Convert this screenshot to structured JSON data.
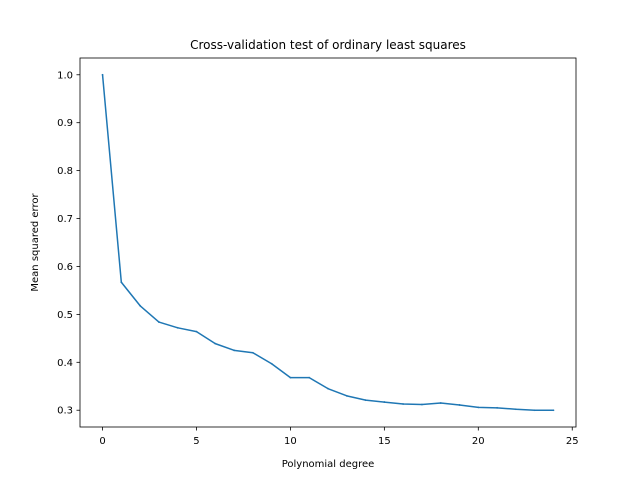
{
  "chart_data": {
    "type": "line",
    "title": "Cross-validation test of ordinary least squares",
    "xlabel": "Polynomial degree",
    "ylabel": "Mean squared error",
    "xlim": [
      -1.2,
      25.2
    ],
    "ylim": [
      0.265,
      1.035
    ],
    "xticks": [
      0,
      5,
      10,
      15,
      20,
      25
    ],
    "yticks": [
      0.3,
      0.4,
      0.5,
      0.6,
      0.7,
      0.8,
      0.9,
      1.0
    ],
    "ytick_labels": [
      "0.3",
      "0.4",
      "0.5",
      "0.6",
      "0.7",
      "0.8",
      "0.9",
      "1.0"
    ],
    "grid": false,
    "series": [
      {
        "color": "#1f77b4",
        "x": [
          0,
          1,
          2,
          3,
          4,
          5,
          6,
          7,
          8,
          9,
          10,
          11,
          12,
          13,
          14,
          15,
          16,
          17,
          18,
          19,
          20,
          21,
          22,
          23,
          24
        ],
        "y": [
          1.0,
          0.567,
          0.518,
          0.484,
          0.472,
          0.464,
          0.439,
          0.425,
          0.42,
          0.397,
          0.368,
          0.368,
          0.345,
          0.33,
          0.321,
          0.317,
          0.313,
          0.312,
          0.315,
          0.311,
          0.306,
          0.305,
          0.302,
          0.3,
          0.3
        ]
      }
    ]
  }
}
